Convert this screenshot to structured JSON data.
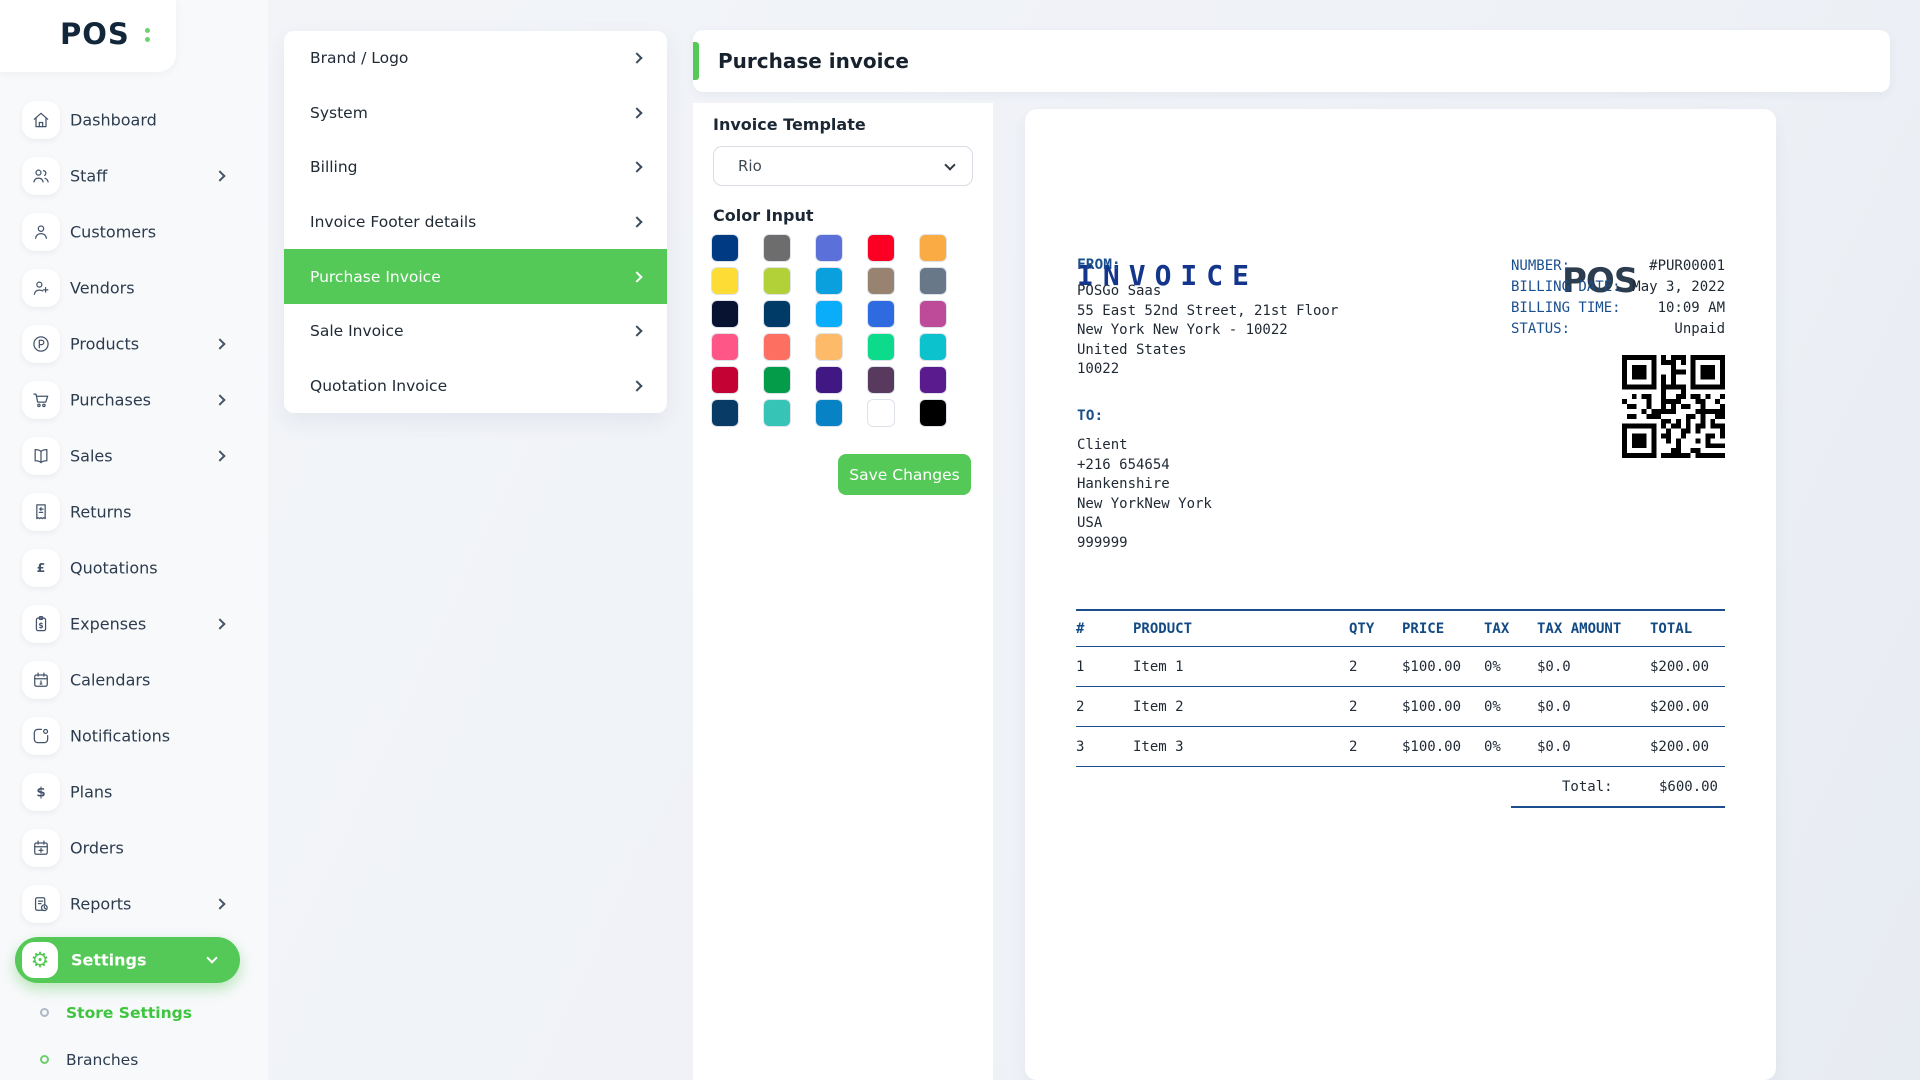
{
  "brand": {
    "logo_text": "POS",
    "accent_color": "#55c957"
  },
  "sidebar": {
    "items": [
      {
        "label": "Dashboard",
        "icon": "home-icon",
        "chevron": false
      },
      {
        "label": "Staff",
        "icon": "users-icon",
        "chevron": true
      },
      {
        "label": "Customers",
        "icon": "user-icon",
        "chevron": false
      },
      {
        "label": "Vendors",
        "icon": "user-plus-icon",
        "chevron": false
      },
      {
        "label": "Products",
        "icon": "product-circle-p-icon",
        "chevron": true
      },
      {
        "label": "Purchases",
        "icon": "cart-icon",
        "chevron": true
      },
      {
        "label": "Sales",
        "icon": "book-icon",
        "chevron": true
      },
      {
        "label": "Returns",
        "icon": "receipt-icon",
        "chevron": false
      },
      {
        "label": "Quotations",
        "icon": "pound-icon",
        "chevron": false
      },
      {
        "label": "Expenses",
        "icon": "clipboard-dollar-icon",
        "chevron": true
      },
      {
        "label": "Calendars",
        "icon": "calendar-icon",
        "chevron": false
      },
      {
        "label": "Notifications",
        "icon": "notification-icon",
        "chevron": false
      },
      {
        "label": "Plans",
        "icon": "dollar-icon",
        "chevron": false
      },
      {
        "label": "Orders",
        "icon": "calendar-plus-icon",
        "chevron": false
      },
      {
        "label": "Reports",
        "icon": "report-clock-icon",
        "chevron": true
      }
    ],
    "settings": {
      "label": "Settings"
    },
    "sub_items": [
      {
        "label": "Store Settings",
        "active": true
      },
      {
        "label": "Branches",
        "active": false
      }
    ]
  },
  "settings_menu": {
    "items": [
      {
        "label": "Brand / Logo"
      },
      {
        "label": "System"
      },
      {
        "label": "Billing"
      },
      {
        "label": "Invoice Footer details"
      },
      {
        "label": "Purchase Invoice"
      },
      {
        "label": "Sale Invoice"
      },
      {
        "label": "Quotation Invoice"
      }
    ],
    "active_label": "Purchase Invoice"
  },
  "page": {
    "title": "Purchase invoice"
  },
  "form": {
    "template_label": "Invoice Template",
    "template_value": "Rio",
    "color_label": "Color Input",
    "save_label": "Save Changes",
    "colors": [
      "#003a83",
      "#6d6d6d",
      "#5b70d8",
      "#fb0023",
      "#fbab43",
      "#fcdc35",
      "#b2d138",
      "#0a9fdd",
      "#97836f",
      "#697888",
      "#071330",
      "#003a67",
      "#0aadfa",
      "#2e6be0",
      "#bd4b99",
      "#fd5687",
      "#fd6f61",
      "#fdba69",
      "#0bdb8b",
      "#0cc2cc",
      "#c40233",
      "#049b49",
      "#411883",
      "#583a5e",
      "#5a1b8e",
      "#083b66",
      "#35c4b5",
      "#0782c5",
      "#ffffff",
      "#000000"
    ]
  },
  "invoice": {
    "title": "INVOICE",
    "logo_text": "POS",
    "from_label": "FROM:",
    "from_lines": {
      "l0": "POSGo Saas",
      "l1": "55 East 52nd Street, 21st Floor",
      "l2": "New York New York - 10022",
      "l3": "United States",
      "l4": "10022"
    },
    "meta": [
      {
        "label": "NUMBER:",
        "value": "#PUR00001"
      },
      {
        "label": "BILLING DATE:",
        "value": "May 3, 2022"
      },
      {
        "label": "BILLING TIME:",
        "value": "10:09 AM"
      },
      {
        "label": "STATUS:",
        "value": "Unpaid"
      }
    ],
    "to_label": "TO:",
    "to_lines": {
      "l0": "Client",
      "l1": "+216 654654",
      "l2": "Hankenshire",
      "l3": "New YorkNew York",
      "l4": "USA",
      "l5": "999999"
    },
    "table": {
      "headers": [
        "#",
        "PRODUCT",
        "QTY",
        "PRICE",
        "TAX",
        "TAX AMOUNT",
        "TOTAL"
      ],
      "rows": [
        [
          "1",
          "Item 1",
          "2",
          "$100.00",
          "0%",
          "$0.0",
          "$200.00"
        ],
        [
          "2",
          "Item 2",
          "2",
          "$100.00",
          "0%",
          "$0.0",
          "$200.00"
        ],
        [
          "3",
          "Item 3",
          "2",
          "$100.00",
          "0%",
          "$0.0",
          "$200.00"
        ]
      ],
      "total_label": "Total:",
      "total_value": "$600.00"
    }
  }
}
